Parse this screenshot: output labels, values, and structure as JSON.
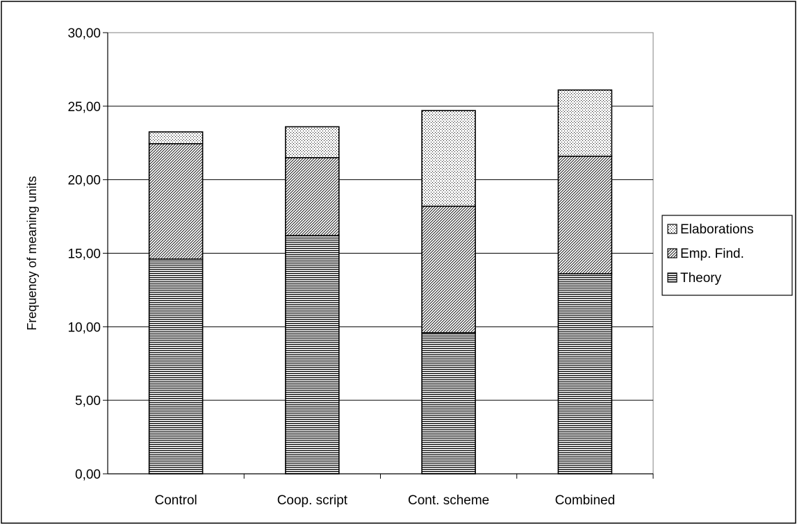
{
  "chart_data": {
    "type": "bar",
    "stacked": true,
    "categories": [
      "Control",
      "Coop. script",
      "Cont. scheme",
      "Combined"
    ],
    "series": [
      {
        "name": "Theory",
        "values": [
          14.6,
          16.2,
          9.6,
          13.6
        ],
        "pattern": "horizontal-lines"
      },
      {
        "name": "Emp. Find.",
        "values": [
          7.85,
          5.3,
          8.6,
          8.0
        ],
        "pattern": "diagonal-hatch"
      },
      {
        "name": "Elaborations",
        "values": [
          0.8,
          2.1,
          6.5,
          4.5
        ],
        "pattern": "dots"
      }
    ],
    "title": "",
    "xlabel": "",
    "ylabel": "Frequency of meaning  units",
    "ylim": [
      0,
      30
    ],
    "yticks": [
      "0,00",
      "5,00",
      "10,00",
      "15,00",
      "20,00",
      "25,00",
      "30,00"
    ],
    "grid": true,
    "legend_position": "right",
    "legend_order": [
      "Elaborations",
      "Emp. Find.",
      "Theory"
    ]
  }
}
